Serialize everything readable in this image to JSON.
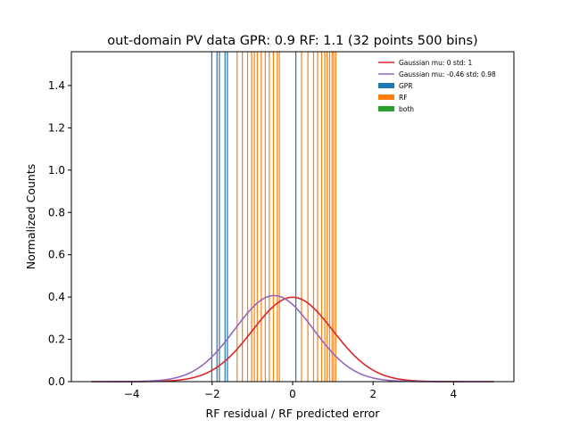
{
  "chart_data": {
    "type": "histogram-with-curves",
    "title": "out-domain PV data GPR: 0.9 RF: 1.1 (32 points 500 bins)",
    "xlabel": "RF residual / RF predicted error",
    "ylabel": "Normalized Counts",
    "xlim": [
      -5.5,
      5.5
    ],
    "ylim": [
      0,
      1.56
    ],
    "x_ticks": [
      -4,
      -2,
      0,
      2,
      4
    ],
    "x_tick_labels": [
      "−4",
      "−2",
      "0",
      "2",
      "4"
    ],
    "y_ticks": [
      0.0,
      0.2,
      0.4,
      0.6,
      0.8,
      1.0,
      1.2,
      1.4
    ],
    "y_tick_labels": [
      "0.0",
      "0.2",
      "0.4",
      "0.6",
      "0.8",
      "1.0",
      "1.2",
      "1.4"
    ],
    "grid": false,
    "legend_position": "top-right",
    "curves": [
      {
        "name": "Gaussian mu: 0 std: 1",
        "color": "#d62728",
        "mu": 0,
        "std": 1,
        "x_range": [
          -5,
          5
        ]
      },
      {
        "name": "Gaussian mu: -0.46 std: 0.98",
        "color": "#9467bd",
        "mu": -0.46,
        "std": 0.98,
        "x_range": [
          -5,
          5
        ]
      }
    ],
    "bar_series": [
      {
        "name": "GPR",
        "color": "#1f77b4",
        "bin_positions": [
          -2.01,
          -1.88,
          -1.82,
          -1.68,
          -1.62,
          0.08
        ]
      },
      {
        "name": "RF",
        "color": "#ff7f0e",
        "bin_positions": [
          -1.38,
          -1.25,
          -1.12,
          -1.02,
          -0.95,
          -0.88,
          -0.78,
          -0.68,
          -0.58,
          -0.48,
          -0.38,
          -0.33,
          0.22,
          0.38,
          0.52,
          0.62,
          0.72,
          0.8,
          0.86,
          0.92,
          0.98,
          1.02,
          1.07
        ]
      },
      {
        "name": "both",
        "color": "#2ca02c",
        "bin_positions": []
      }
    ]
  }
}
